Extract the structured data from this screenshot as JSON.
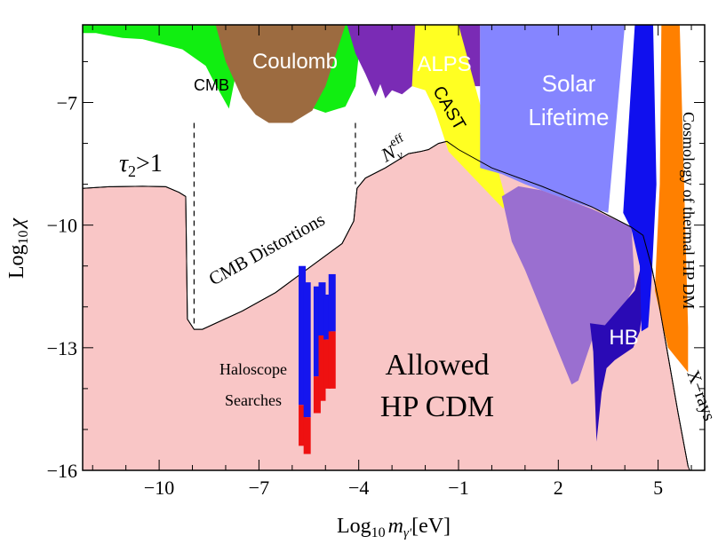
{
  "chart_data": {
    "type": "area",
    "title": "",
    "xlabel": "Log10 mγ' [eV]",
    "xlabel_main": "Log",
    "xlabel_sub": "10",
    "xlabel_var": "m",
    "xlabel_varsub": "γ'",
    "xlabel_unit": "[eV]",
    "ylabel": "Log10 χ",
    "ylabel_main": "Log",
    "ylabel_sub": "10",
    "ylabel_var": "χ",
    "xlim": [
      -12.3,
      6.4
    ],
    "ylim": [
      -16,
      -5.1
    ],
    "x_ticks": [
      -10,
      -7,
      -4,
      -1,
      2,
      5
    ],
    "y_ticks": [
      -7,
      -10,
      -13,
      -16
    ],
    "x_tick_labels": [
      "−10",
      "−7",
      "−4",
      "−1",
      "2",
      "5"
    ],
    "y_tick_labels": [
      "−7",
      "−10",
      "−13",
      "−16"
    ],
    "regions": [
      {
        "name": "allowed",
        "label": "Allowed HP CDM",
        "label_line1": "Allowed",
        "label_line2": "HP CDM",
        "color": "#f9c6c6",
        "points": [
          [
            -12.3,
            -9.1
          ],
          [
            -11.5,
            -9.06
          ],
          [
            -10.5,
            -9.05
          ],
          [
            -9.8,
            -9.06
          ],
          [
            -9.4,
            -9.2
          ],
          [
            -9.2,
            -9.3
          ],
          [
            -9.15,
            -12.3
          ],
          [
            -8.95,
            -12.55
          ],
          [
            -8.7,
            -12.55
          ],
          [
            -7.5,
            -12.1
          ],
          [
            -6.5,
            -11.65
          ],
          [
            -5.5,
            -11.05
          ],
          [
            -4.5,
            -10.45
          ],
          [
            -4.15,
            -9.9
          ],
          [
            -4.05,
            -9.1
          ],
          [
            -3.8,
            -8.85
          ],
          [
            -3.2,
            -8.6
          ],
          [
            -2.5,
            -8.25
          ],
          [
            -2.15,
            -8.2
          ],
          [
            -1.9,
            -8.15
          ],
          [
            -1.6,
            -8.0
          ],
          [
            -1.35,
            -7.95
          ],
          [
            -1.0,
            -8.15
          ],
          [
            0.0,
            -8.6
          ],
          [
            1.5,
            -9.05
          ],
          [
            3.0,
            -9.55
          ],
          [
            4.2,
            -10.05
          ],
          [
            4.55,
            -10.25
          ],
          [
            4.8,
            -11.0
          ],
          [
            5.0,
            -11.8
          ],
          [
            5.3,
            -13.2
          ],
          [
            5.6,
            -14.6
          ],
          [
            5.9,
            -15.9
          ],
          [
            5.95,
            -16
          ],
          [
            -12.3,
            -16
          ]
        ]
      },
      {
        "name": "cmb",
        "label": "CMB",
        "color": "#11ee11",
        "points": [
          [
            -12.3,
            -5.1
          ],
          [
            -9.2,
            -5.1
          ],
          [
            -7.4,
            -5.1
          ],
          [
            -7.9,
            -7.15
          ],
          [
            -8.35,
            -6.5
          ],
          [
            -8.6,
            -6.1
          ],
          [
            -9.3,
            -5.7
          ],
          [
            -10.5,
            -5.45
          ],
          [
            -11.1,
            -5.42
          ],
          [
            -11.6,
            -5.35
          ],
          [
            -11.9,
            -5.3
          ],
          [
            -12.3,
            -5.3
          ]
        ]
      },
      {
        "name": "cmb-right",
        "label": "",
        "color": "#11ee11",
        "points": [
          [
            -5.5,
            -5.1
          ],
          [
            -3.9,
            -5.1
          ],
          [
            -4.1,
            -6.6
          ],
          [
            -4.4,
            -7.1
          ],
          [
            -5.0,
            -7.25
          ],
          [
            -5.7,
            -7.05
          ],
          [
            -5.9,
            -6.6
          ]
        ]
      },
      {
        "name": "coulomb",
        "label": "Coulomb",
        "color": "#9c6b40",
        "points": [
          [
            -8.3,
            -5.1
          ],
          [
            -4.4,
            -5.1
          ],
          [
            -5.0,
            -6.6
          ],
          [
            -5.4,
            -7.2
          ],
          [
            -6.0,
            -7.5
          ],
          [
            -6.7,
            -7.5
          ],
          [
            -7.1,
            -7.3
          ],
          [
            -7.5,
            -6.9
          ],
          [
            -8.0,
            -6.0
          ]
        ]
      },
      {
        "name": "alps",
        "label": "ALPS",
        "color": "#7a2bb5",
        "points": [
          [
            -4.35,
            -5.1
          ],
          [
            -0.35,
            -5.1
          ],
          [
            -0.35,
            -6.6
          ],
          [
            -2.4,
            -6.6
          ],
          [
            -2.7,
            -6.8
          ],
          [
            -3.0,
            -6.7
          ],
          [
            -3.2,
            -6.9
          ],
          [
            -3.35,
            -6.55
          ],
          [
            -3.5,
            -6.85
          ],
          [
            -3.8,
            -6.3
          ],
          [
            -4.1,
            -5.8
          ]
        ]
      },
      {
        "name": "cast",
        "label": "CAST",
        "color": "#ffff22",
        "points": [
          [
            -2.3,
            -5.1
          ],
          [
            -1.0,
            -5.1
          ],
          [
            0.4,
            -9.3
          ],
          [
            0.35,
            -9.6
          ],
          [
            -1.3,
            -8.2
          ],
          [
            -1.7,
            -7.2
          ],
          [
            -2.0,
            -6.7
          ],
          [
            -2.4,
            -6.6
          ]
        ]
      },
      {
        "name": "solar",
        "label": "Solar Lifetime",
        "label_line1": "Solar",
        "label_line2": "Lifetime",
        "color": "#8585ff",
        "points": [
          [
            -0.35,
            -5.1
          ],
          [
            4.0,
            -5.1
          ],
          [
            3.5,
            -9.7
          ],
          [
            2.5,
            -9.45
          ],
          [
            1.0,
            -9.0
          ],
          [
            0.3,
            -8.75
          ],
          [
            -0.35,
            -8.6
          ]
        ]
      },
      {
        "name": "solar-overlap",
        "label": "",
        "color": "#9a6fd0",
        "points": [
          [
            0.3,
            -9.3
          ],
          [
            0.8,
            -9.05
          ],
          [
            1.5,
            -9.15
          ],
          [
            3.0,
            -9.6
          ],
          [
            4.2,
            -10.05
          ],
          [
            4.3,
            -11.5
          ],
          [
            3.6,
            -12.5
          ],
          [
            3.1,
            -12.6
          ],
          [
            2.6,
            -13.8
          ],
          [
            2.4,
            -13.9
          ],
          [
            2.0,
            -13.1
          ],
          [
            1.5,
            -12.1
          ],
          [
            1.0,
            -11.1
          ],
          [
            0.6,
            -10.4
          ]
        ]
      },
      {
        "name": "hb",
        "label": "HB",
        "color": "#2a0ab5",
        "points": [
          [
            2.95,
            -12.4
          ],
          [
            3.4,
            -12.45
          ],
          [
            4.3,
            -11.6
          ],
          [
            4.55,
            -10.8
          ],
          [
            4.6,
            -11.6
          ],
          [
            4.45,
            -12.6
          ],
          [
            4.25,
            -13.0
          ],
          [
            3.7,
            -13.3
          ],
          [
            3.45,
            -13.5
          ],
          [
            3.3,
            -14.1
          ],
          [
            3.15,
            -15.3
          ],
          [
            3.1,
            -14.2
          ],
          [
            3.05,
            -13.1
          ]
        ]
      },
      {
        "name": "blue-band",
        "label": "",
        "color": "#1010ee",
        "points": [
          [
            4.3,
            -5.1
          ],
          [
            4.85,
            -5.1
          ],
          [
            4.95,
            -9.0
          ],
          [
            4.8,
            -11.4
          ],
          [
            4.7,
            -12.5
          ],
          [
            4.5,
            -12.6
          ],
          [
            4.45,
            -11.0
          ],
          [
            4.2,
            -10.1
          ],
          [
            3.95,
            -9.7
          ]
        ]
      },
      {
        "name": "cosmology",
        "label": "Cosmology of thermal HP DM",
        "color": "#ff8000",
        "points": [
          [
            5.1,
            -5.1
          ],
          [
            5.65,
            -5.1
          ],
          [
            5.9,
            -12.5
          ],
          [
            5.9,
            -13.6
          ],
          [
            5.3,
            -13.0
          ],
          [
            4.9,
            -11.6
          ],
          [
            5.05,
            -9.0
          ]
        ]
      }
    ],
    "dashed_lines": [
      {
        "x": -8.95,
        "y_start": -7.5,
        "y_end": -12.5
      },
      {
        "x": -4.1,
        "y_start": -7.5,
        "y_end": -9.0
      }
    ],
    "haloscope_bars": [
      {
        "x": -5.7,
        "blue_top": -11.0,
        "red_top": -14.4,
        "bottom": -15.4
      },
      {
        "x": -5.55,
        "blue_top": -11.4,
        "red_top": -14.7,
        "bottom": -15.6
      },
      {
        "x": -5.25,
        "blue_top": -11.5,
        "red_top": -13.7,
        "bottom": -14.6
      },
      {
        "x": -5.1,
        "blue_top": -11.4,
        "red_top": -12.7,
        "bottom": -14.3
      },
      {
        "x": -4.95,
        "blue_top": -11.7,
        "red_top": -12.8,
        "bottom": -14.0
      },
      {
        "x": -4.8,
        "blue_top": -11.2,
        "red_top": -12.6,
        "bottom": -14.0
      }
    ],
    "annotations": {
      "tau": "τ₂>1",
      "tau_main": "τ",
      "tau_sub": "2",
      "tau_rest": ">1",
      "cmb_distortions": "CMB Distortions",
      "neff": "Nνeff",
      "neff_main": "N",
      "neff_sub": "ν",
      "neff_sup": "eff",
      "haloscope": "Haloscope Searches",
      "haloscope_line1": "Haloscope",
      "haloscope_line2": "Searches",
      "xrays": "X−rays"
    }
  }
}
